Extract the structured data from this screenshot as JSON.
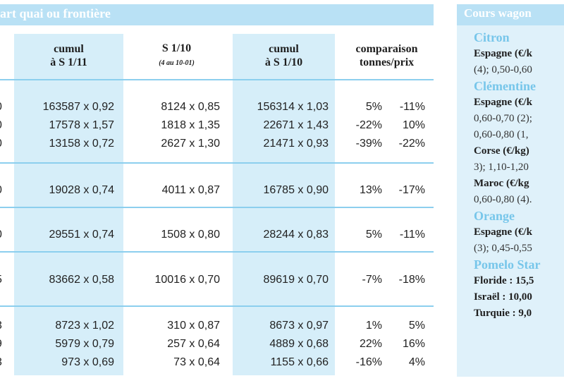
{
  "left_table": {
    "title": "art quai ou frontière",
    "headers": [
      {
        "line1": "cumul",
        "line2": "à S 1/11",
        "sub": ""
      },
      {
        "line1": "S 1/10",
        "line2": "",
        "sub": "(4 au 10-01)"
      },
      {
        "line1": "cumul",
        "line2": "à S 1/10",
        "sub": ""
      },
      {
        "line1": "comparaison",
        "line2": "tonnes/prix",
        "sub": ""
      }
    ],
    "rows": [
      {
        "edge": "0",
        "c1": "163587 x 0,92",
        "c2": "8124 x 0,85",
        "c3": "156314 x 1,03",
        "tons": "5%",
        "price": "-11%"
      },
      {
        "edge": "0",
        "c1": "17578 x 1,57",
        "c2": "1818 x 1,35",
        "c3": "22671 x 1,43",
        "tons": "-22%",
        "price": "10%"
      },
      {
        "edge": "0",
        "c1": "13158 x 0,72",
        "c2": "2627 x 1,30",
        "c3": "21471 x 0,93",
        "tons": "-39%",
        "price": "-22%"
      },
      {
        "edge": "0",
        "c1": "19028 x 0,74",
        "c2": "4011 x 0,87",
        "c3": "16785 x 0,90",
        "tons": "13%",
        "price": "-17%"
      },
      {
        "edge": "0",
        "c1": "29551 x 0,74",
        "c2": "1508 x 0,80",
        "c3": "28244 x 0,83",
        "tons": "5%",
        "price": "-11%"
      },
      {
        "edge": "5",
        "c1": "83662 x 0,58",
        "c2": "10016 x 0,70",
        "c3": "89619 x 0,70",
        "tons": "-7%",
        "price": "-18%"
      },
      {
        "edge": "3",
        "c1": "8723 x 1,02",
        "c2": "310 x 0,87",
        "c3": "8673 x 0,97",
        "tons": "1%",
        "price": "5%"
      },
      {
        "edge": "9",
        "c1": "5979 x 0,79",
        "c2": "257 x 0,64",
        "c3": "4889 x 0,68",
        "tons": "22%",
        "price": "16%"
      },
      {
        "edge": "3",
        "c1": "973 x 0,69",
        "c2": "73 x 0,64",
        "c3": "1155 x 0,66",
        "tons": "-16%",
        "price": "4%"
      }
    ]
  },
  "right_panel": {
    "title": "Cours wagon",
    "lines": [
      {
        "kind": "fruit",
        "text": "Citron"
      },
      {
        "kind": "origin",
        "text": "Espagne (€/k"
      },
      {
        "kind": "detail",
        "text": "(4); 0,50-0,60"
      },
      {
        "kind": "fruit",
        "text": "Clémentine"
      },
      {
        "kind": "origin",
        "text": "Espagne (€/k"
      },
      {
        "kind": "detail",
        "text": "0,60-0,70 (2);"
      },
      {
        "kind": "detail",
        "text": "0,60-0,80 (1,"
      },
      {
        "kind": "origin",
        "text": "Corse (€/kg)"
      },
      {
        "kind": "detail",
        "text": "3); 1,10-1,20"
      },
      {
        "kind": "origin",
        "text": "Maroc (€/kg"
      },
      {
        "kind": "detail",
        "text": "0,60-0,80 (4)."
      },
      {
        "kind": "fruit",
        "text": "Orange"
      },
      {
        "kind": "origin",
        "text": "Espagne (€/k"
      },
      {
        "kind": "detail",
        "text": "(3); 0,45-0,55"
      },
      {
        "kind": "fruit",
        "text": "Pomelo Star"
      },
      {
        "kind": "origin",
        "text": "Floride : 15,5"
      },
      {
        "kind": "origin",
        "text": "Israël : 10,00"
      },
      {
        "kind": "origin",
        "text": "Turquie : 9,0"
      }
    ]
  },
  "colors": {
    "header_band": "#b9e1f5",
    "column_band": "#d6eef9",
    "rule": "#8ccfee",
    "fruit_title": "#77c6ea",
    "side_panel": "#dff1fa"
  }
}
